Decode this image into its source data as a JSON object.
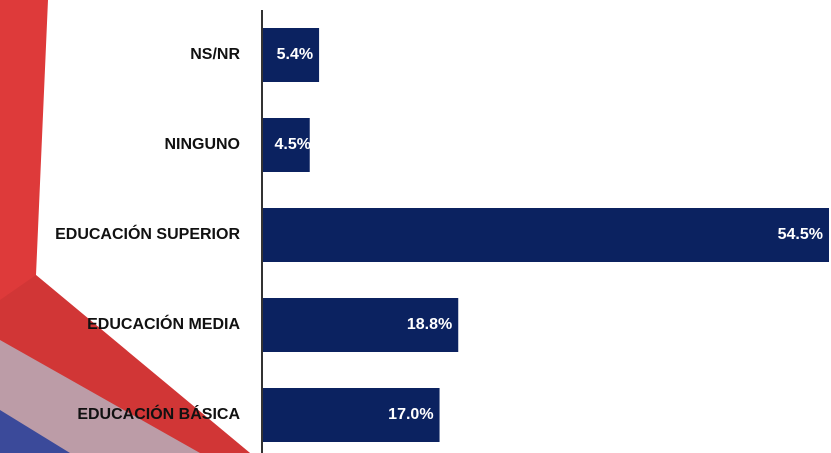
{
  "chart_data": {
    "type": "barh",
    "categories": [
      "NS/NR",
      "NINGUNO",
      "EDUCACIÓN SUPERIOR",
      "EDUCACIÓN MEDIA",
      "EDUCACIÓN BÁSICA"
    ],
    "values": [
      5.4,
      4.5,
      54.5,
      18.8,
      17.0
    ],
    "value_labels": [
      "5.4%",
      "4.5%",
      "54.5%",
      "18.8%",
      "17.0%"
    ],
    "color": "#0b2260"
  }
}
